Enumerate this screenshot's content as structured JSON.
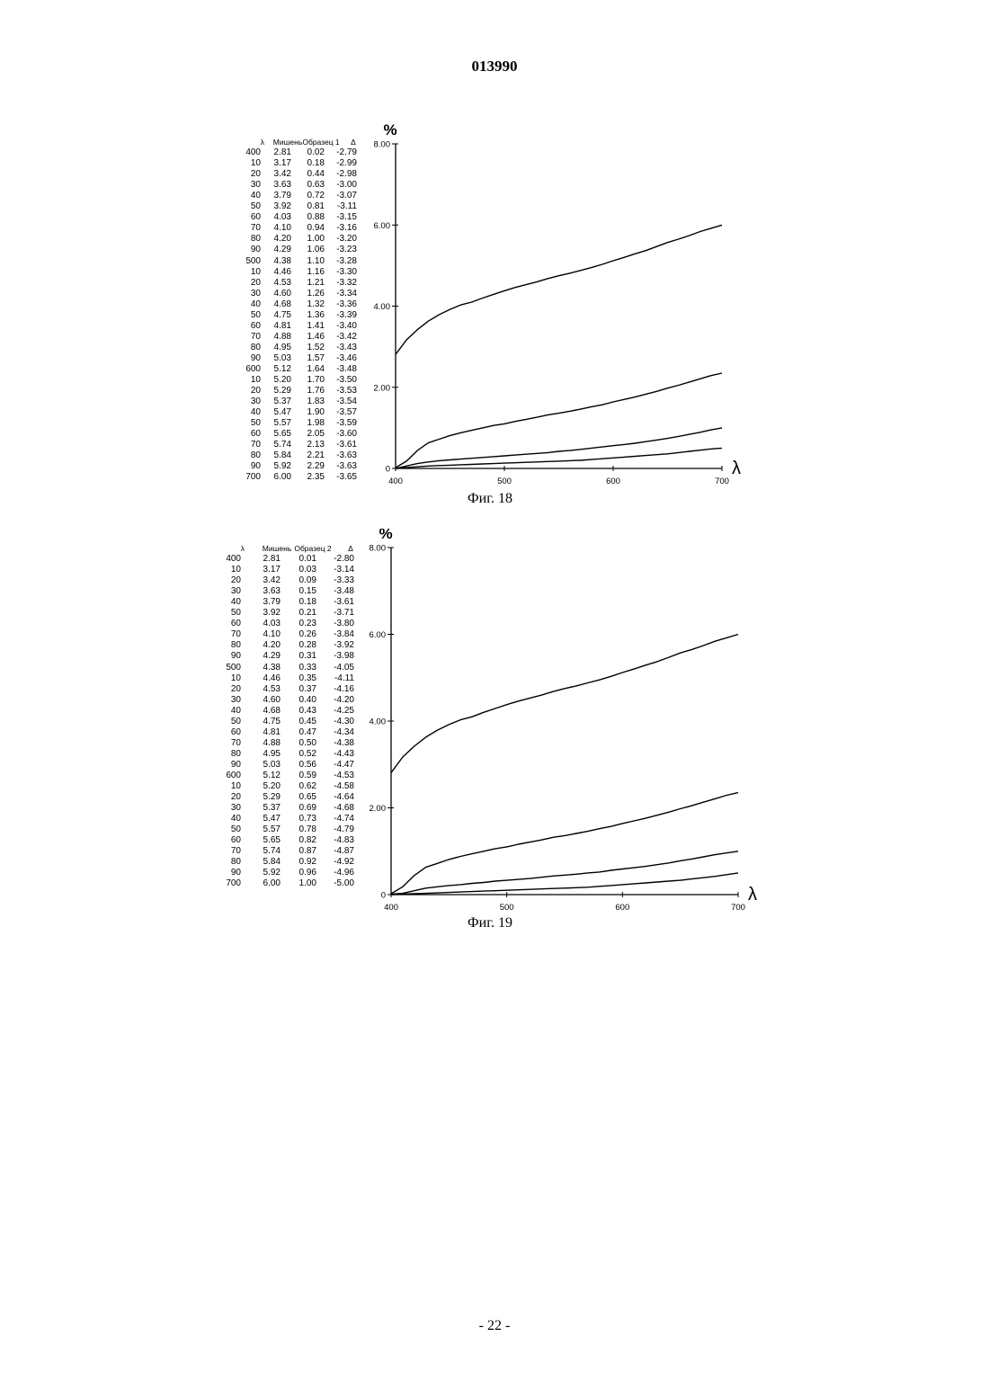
{
  "header": {
    "doc_number": "013990"
  },
  "footer": {
    "page": "- 22 -"
  },
  "figures": [
    {
      "caption": "Фиг. 18",
      "table": {
        "headers": [
          "λ",
          "Мишень",
          "Образец 1",
          "Δ"
        ],
        "rows": [
          [
            "400",
            "2.81",
            "0.02",
            "-2.79"
          ],
          [
            "10",
            "3.17",
            "0.18",
            "-2.99"
          ],
          [
            "20",
            "3.42",
            "0.44",
            "-2.98"
          ],
          [
            "30",
            "3.63",
            "0.63",
            "-3.00"
          ],
          [
            "40",
            "3.79",
            "0.72",
            "-3.07"
          ],
          [
            "50",
            "3.92",
            "0.81",
            "-3.11"
          ],
          [
            "60",
            "4.03",
            "0.88",
            "-3.15"
          ],
          [
            "70",
            "4.10",
            "0.94",
            "-3.16"
          ],
          [
            "80",
            "4.20",
            "1.00",
            "-3.20"
          ],
          [
            "90",
            "4.29",
            "1.06",
            "-3.23"
          ],
          [
            "500",
            "4.38",
            "1.10",
            "-3.28"
          ],
          [
            "10",
            "4.46",
            "1.16",
            "-3.30"
          ],
          [
            "20",
            "4.53",
            "1.21",
            "-3.32"
          ],
          [
            "30",
            "4.60",
            "1.26",
            "-3.34"
          ],
          [
            "40",
            "4.68",
            "1.32",
            "-3.36"
          ],
          [
            "50",
            "4.75",
            "1.36",
            "-3.39"
          ],
          [
            "60",
            "4.81",
            "1.41",
            "-3.40"
          ],
          [
            "70",
            "4.88",
            "1.46",
            "-3.42"
          ],
          [
            "80",
            "4.95",
            "1.52",
            "-3.43"
          ],
          [
            "90",
            "5.03",
            "1.57",
            "-3.46"
          ],
          [
            "600",
            "5.12",
            "1.64",
            "-3.48"
          ],
          [
            "10",
            "5.20",
            "1.70",
            "-3.50"
          ],
          [
            "20",
            "5.29",
            "1.76",
            "-3.53"
          ],
          [
            "30",
            "5.37",
            "1.83",
            "-3.54"
          ],
          [
            "40",
            "5.47",
            "1.90",
            "-3.57"
          ],
          [
            "50",
            "5.57",
            "1.98",
            "-3.59"
          ],
          [
            "60",
            "5.65",
            "2.05",
            "-3.60"
          ],
          [
            "70",
            "5.74",
            "2.13",
            "-3.61"
          ],
          [
            "80",
            "5.84",
            "2.21",
            "-3.63"
          ],
          [
            "90",
            "5.92",
            "2.29",
            "-3.63"
          ],
          [
            "700",
            "6.00",
            "2.35",
            "-3.65"
          ]
        ]
      },
      "chart_data": {
        "type": "line",
        "y_unit_label": "%",
        "x_axis_symbol": "λ",
        "xlim": [
          400,
          700
        ],
        "ylim": [
          0,
          8
        ],
        "x_ticks": [
          "400",
          "500",
          "600",
          "700"
        ],
        "y_ticks": [
          "0",
          "2.00",
          "4.00",
          "6.00",
          "8.00"
        ],
        "x": [
          400,
          410,
          420,
          430,
          440,
          450,
          460,
          470,
          480,
          490,
          500,
          510,
          520,
          530,
          540,
          550,
          560,
          570,
          580,
          590,
          600,
          610,
          620,
          630,
          640,
          650,
          660,
          670,
          680,
          690,
          700
        ],
        "series": [
          {
            "values": [
              2.81,
              3.17,
              3.42,
              3.63,
              3.79,
              3.92,
              4.03,
              4.1,
              4.2,
              4.29,
              4.38,
              4.46,
              4.53,
              4.6,
              4.68,
              4.75,
              4.81,
              4.88,
              4.95,
              5.03,
              5.12,
              5.2,
              5.29,
              5.37,
              5.47,
              5.57,
              5.65,
              5.74,
              5.84,
              5.92,
              6.0
            ]
          },
          {
            "values": [
              0.02,
              0.18,
              0.44,
              0.63,
              0.72,
              0.81,
              0.88,
              0.94,
              1.0,
              1.06,
              1.1,
              1.16,
              1.21,
              1.26,
              1.32,
              1.36,
              1.41,
              1.46,
              1.52,
              1.57,
              1.64,
              1.7,
              1.76,
              1.83,
              1.9,
              1.98,
              2.05,
              2.13,
              2.21,
              2.29,
              2.35
            ]
          },
          {
            "values": [
              0.0,
              0.06,
              0.12,
              0.16,
              0.19,
              0.21,
              0.23,
              0.25,
              0.27,
              0.29,
              0.31,
              0.33,
              0.35,
              0.37,
              0.39,
              0.42,
              0.44,
              0.47,
              0.5,
              0.53,
              0.56,
              0.59,
              0.62,
              0.66,
              0.7,
              0.74,
              0.79,
              0.84,
              0.89,
              0.95,
              1.0
            ]
          },
          {
            "values": [
              0.0,
              0.02,
              0.04,
              0.06,
              0.07,
              0.08,
              0.09,
              0.1,
              0.11,
              0.12,
              0.13,
              0.14,
              0.15,
              0.16,
              0.17,
              0.18,
              0.19,
              0.2,
              0.22,
              0.24,
              0.26,
              0.28,
              0.3,
              0.32,
              0.34,
              0.36,
              0.39,
              0.42,
              0.45,
              0.48,
              0.5
            ]
          }
        ]
      }
    },
    {
      "caption": "Фиг. 19",
      "table": {
        "headers": [
          "λ",
          "Мишень",
          "Образец 2",
          "Δ"
        ],
        "rows": [
          [
            "400",
            "2.81",
            "0.01",
            "-2.80"
          ],
          [
            "10",
            "3.17",
            "0.03",
            "-3.14"
          ],
          [
            "20",
            "3.42",
            "0.09",
            "-3.33"
          ],
          [
            "30",
            "3.63",
            "0.15",
            "-3.48"
          ],
          [
            "40",
            "3.79",
            "0.18",
            "-3.61"
          ],
          [
            "50",
            "3.92",
            "0.21",
            "-3.71"
          ],
          [
            "60",
            "4.03",
            "0.23",
            "-3.80"
          ],
          [
            "70",
            "4.10",
            "0.26",
            "-3.84"
          ],
          [
            "80",
            "4.20",
            "0.28",
            "-3.92"
          ],
          [
            "90",
            "4.29",
            "0.31",
            "-3.98"
          ],
          [
            "500",
            "4.38",
            "0.33",
            "-4.05"
          ],
          [
            "10",
            "4.46",
            "0.35",
            "-4.11"
          ],
          [
            "20",
            "4.53",
            "0.37",
            "-4.16"
          ],
          [
            "30",
            "4.60",
            "0.40",
            "-4.20"
          ],
          [
            "40",
            "4.68",
            "0.43",
            "-4.25"
          ],
          [
            "50",
            "4.75",
            "0.45",
            "-4.30"
          ],
          [
            "60",
            "4.81",
            "0.47",
            "-4.34"
          ],
          [
            "70",
            "4.88",
            "0.50",
            "-4.38"
          ],
          [
            "80",
            "4.95",
            "0.52",
            "-4.43"
          ],
          [
            "90",
            "5.03",
            "0.56",
            "-4.47"
          ],
          [
            "600",
            "5.12",
            "0.59",
            "-4.53"
          ],
          [
            "10",
            "5.20",
            "0.62",
            "-4.58"
          ],
          [
            "20",
            "5.29",
            "0.65",
            "-4.64"
          ],
          [
            "30",
            "5.37",
            "0.69",
            "-4.68"
          ],
          [
            "40",
            "5.47",
            "0.73",
            "-4.74"
          ],
          [
            "50",
            "5.57",
            "0.78",
            "-4.79"
          ],
          [
            "60",
            "5.65",
            "0.82",
            "-4.83"
          ],
          [
            "70",
            "5.74",
            "0.87",
            "-4.87"
          ],
          [
            "80",
            "5.84",
            "0.92",
            "-4.92"
          ],
          [
            "90",
            "5.92",
            "0.96",
            "-4.96"
          ],
          [
            "700",
            "6.00",
            "1.00",
            "-5.00"
          ]
        ]
      },
      "chart_data": {
        "type": "line",
        "y_unit_label": "%",
        "x_axis_symbol": "λ",
        "xlim": [
          400,
          700
        ],
        "ylim": [
          0,
          8
        ],
        "x_ticks": [
          "400",
          "500",
          "600",
          "700"
        ],
        "y_ticks": [
          "0",
          "2.00",
          "4.00",
          "6.00",
          "8.00"
        ],
        "x": [
          400,
          410,
          420,
          430,
          440,
          450,
          460,
          470,
          480,
          490,
          500,
          510,
          520,
          530,
          540,
          550,
          560,
          570,
          580,
          590,
          600,
          610,
          620,
          630,
          640,
          650,
          660,
          670,
          680,
          690,
          700
        ],
        "series": [
          {
            "values": [
              2.81,
              3.17,
              3.42,
              3.63,
              3.79,
              3.92,
              4.03,
              4.1,
              4.2,
              4.29,
              4.38,
              4.46,
              4.53,
              4.6,
              4.68,
              4.75,
              4.81,
              4.88,
              4.95,
              5.03,
              5.12,
              5.2,
              5.29,
              5.37,
              5.47,
              5.57,
              5.65,
              5.74,
              5.84,
              5.92,
              6.0
            ]
          },
          {
            "values": [
              0.02,
              0.18,
              0.44,
              0.63,
              0.72,
              0.81,
              0.88,
              0.94,
              1.0,
              1.06,
              1.1,
              1.16,
              1.21,
              1.26,
              1.32,
              1.36,
              1.41,
              1.46,
              1.52,
              1.57,
              1.64,
              1.7,
              1.76,
              1.83,
              1.9,
              1.98,
              2.05,
              2.13,
              2.21,
              2.29,
              2.35
            ]
          },
          {
            "values": [
              0.01,
              0.03,
              0.09,
              0.15,
              0.18,
              0.21,
              0.23,
              0.26,
              0.28,
              0.31,
              0.33,
              0.35,
              0.37,
              0.4,
              0.43,
              0.45,
              0.47,
              0.5,
              0.52,
              0.56,
              0.59,
              0.62,
              0.65,
              0.69,
              0.73,
              0.78,
              0.82,
              0.87,
              0.92,
              0.96,
              1.0
            ]
          },
          {
            "values": [
              0.0,
              0.01,
              0.02,
              0.03,
              0.04,
              0.05,
              0.06,
              0.07,
              0.08,
              0.09,
              0.1,
              0.11,
              0.12,
              0.13,
              0.14,
              0.15,
              0.16,
              0.17,
              0.19,
              0.21,
              0.23,
              0.25,
              0.27,
              0.29,
              0.31,
              0.33,
              0.36,
              0.39,
              0.42,
              0.46,
              0.5
            ]
          }
        ]
      }
    }
  ]
}
